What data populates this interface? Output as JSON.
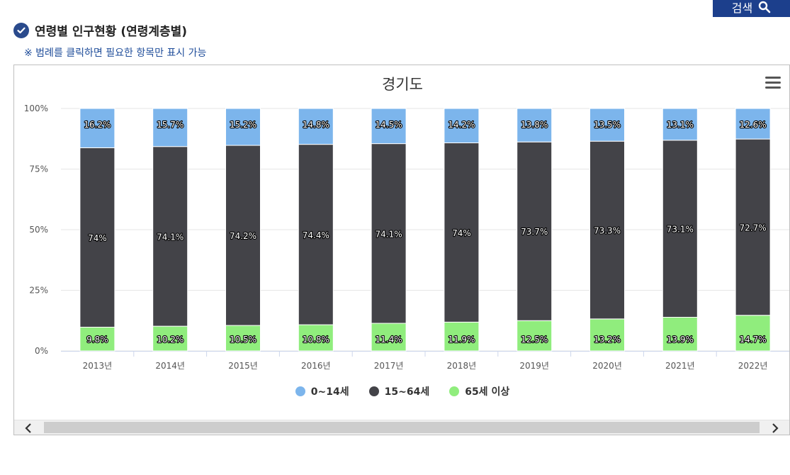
{
  "header": {
    "search_label": "검색",
    "section_title": "연령별 인구현황 (연령계층별)",
    "hint": "※ 범례를 클릭하면 필요한 항목만 표시 가능"
  },
  "colors": {
    "age_0_14": "#7cb5ec",
    "age_15_64": "#434348",
    "age_65_plus": "#90ed7d",
    "title_accent": "#2a4a8c"
  },
  "chart_data": {
    "type": "bar",
    "stacked": "percent",
    "title": "경기도",
    "categories": [
      "2013년",
      "2014년",
      "2015년",
      "2016년",
      "2017년",
      "2018년",
      "2019년",
      "2020년",
      "2021년",
      "2022년"
    ],
    "series": [
      {
        "name": "0~14세",
        "color": "#7cb5ec",
        "values": [
          16.2,
          15.7,
          15.2,
          14.8,
          14.5,
          14.2,
          13.8,
          13.5,
          13.1,
          12.6
        ],
        "labels": [
          "16.2%",
          "15.7%",
          "15.2%",
          "14.8%",
          "14.5%",
          "14.2%",
          "13.8%",
          "13.5%",
          "13.1%",
          "12.6%"
        ]
      },
      {
        "name": "15~64세",
        "color": "#434348",
        "values": [
          74,
          74.1,
          74.2,
          74.4,
          74.1,
          74,
          73.7,
          73.3,
          73.1,
          72.7
        ],
        "labels": [
          "74%",
          "74.1%",
          "74.2%",
          "74.4%",
          "74.1%",
          "74%",
          "73.7%",
          "73.3%",
          "73.1%",
          "72.7%"
        ]
      },
      {
        "name": "65세 이상",
        "color": "#90ed7d",
        "values": [
          9.8,
          10.2,
          10.5,
          10.8,
          11.4,
          11.9,
          12.5,
          13.2,
          13.9,
          14.7
        ],
        "labels": [
          "9.8%",
          "10.2%",
          "10.5%",
          "10.8%",
          "11.4%",
          "11.9%",
          "12.5%",
          "13.2%",
          "13.9%",
          "14.7%"
        ]
      }
    ],
    "y_ticks": [
      "0%",
      "25%",
      "50%",
      "75%",
      "100%"
    ],
    "ylim": [
      0,
      100
    ],
    "grid": true,
    "legend_position": "bottom-center"
  }
}
